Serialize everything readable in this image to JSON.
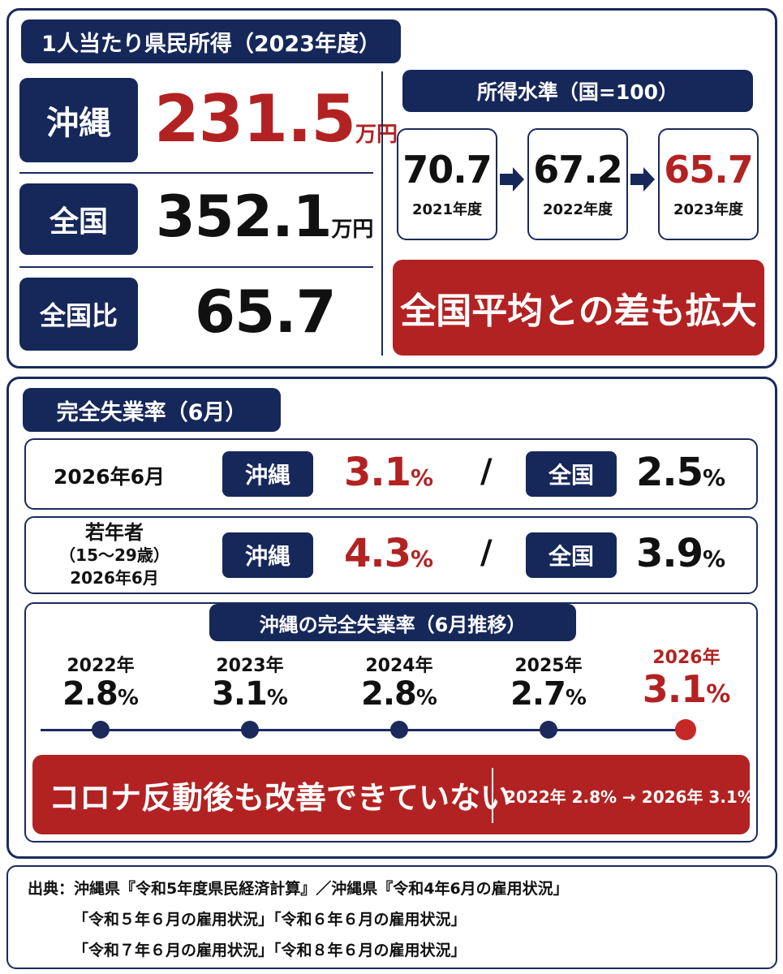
{
  "income": {
    "title": "1人当たり県民所得（2023年度）",
    "rows": [
      {
        "label": "沖縄",
        "value": "231.5",
        "unit": "万円"
      },
      {
        "label": "全国",
        "value": "352.1",
        "unit": "万円"
      },
      {
        "label": "全国比",
        "value": "65.7",
        "unit": ""
      }
    ],
    "level_title": "所得水準（国=100）",
    "levels": [
      {
        "value": "70.7",
        "year": "2021年度"
      },
      {
        "value": "67.2",
        "year": "2022年度"
      },
      {
        "value": "65.7",
        "year": "2023年度"
      }
    ],
    "banner": "全国平均との差も拡大"
  },
  "unemployment": {
    "title": "完全失業率（6月）",
    "rows": [
      {
        "label_lines": [
          "2026年6月"
        ],
        "okinawa_tag": "沖縄",
        "okinawa_value": "3.1",
        "national_tag": "全国",
        "national_value": "2.5",
        "pct": "%",
        "slash": "/"
      },
      {
        "label_lines": [
          "若年者",
          "（15～29歳）",
          "2026年6月"
        ],
        "okinawa_tag": "沖縄",
        "okinawa_value": "4.3",
        "national_tag": "全国",
        "national_value": "3.9",
        "pct": "%",
        "slash": "/"
      }
    ],
    "timeline_title": "沖縄の完全失業率（6月推移）",
    "timeline": [
      {
        "year": "2022年",
        "value": "2.8"
      },
      {
        "year": "2023年",
        "value": "3.1"
      },
      {
        "year": "2024年",
        "value": "2.8"
      },
      {
        "year": "2025年",
        "value": "2.7"
      },
      {
        "year": "2026年",
        "value": "3.1"
      }
    ],
    "pct": "%",
    "banner": "コロナ反動後も改善できていない",
    "banner_note": "2022年 2.8% → 2026年 3.1%"
  },
  "colors": {
    "navy": "#16275a",
    "red": "#b32222"
  },
  "source": {
    "lines": [
      "出典：沖縄県『令和5年度県民経済計算』／沖縄県『令和4年6月の雇用状況」",
      "「令和５年６月の雇用状況」「令和６年６月の雇用状況」",
      "「令和７年６月の雇用状況」「令和８年６月の雇用状況」"
    ]
  }
}
